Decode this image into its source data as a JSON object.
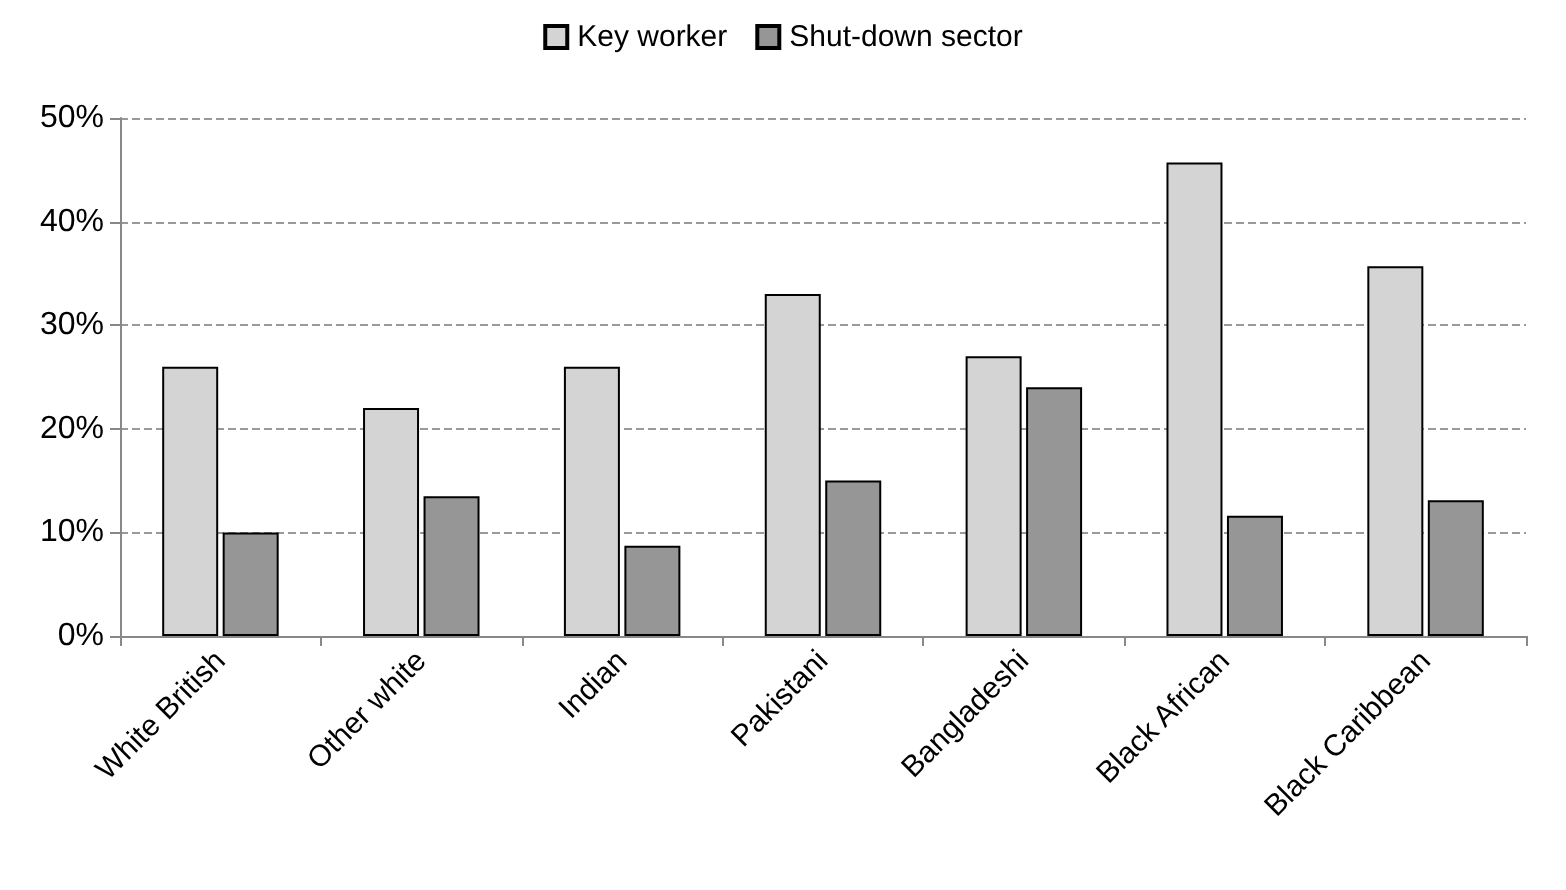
{
  "chart_data": {
    "type": "bar",
    "categories": [
      "White British",
      "Other white",
      "Indian",
      "Pakistani",
      "Bangladeshi",
      "Black African",
      "Black Caribbean"
    ],
    "series": [
      {
        "name": "Key worker",
        "color": "#d4d4d4",
        "values": [
          26,
          22,
          26,
          33,
          27,
          45.7,
          35.7
        ]
      },
      {
        "name": "Shut-down sector",
        "color": "#969696",
        "values": [
          10,
          13.5,
          8.7,
          15,
          24,
          11.6,
          13.1
        ]
      }
    ],
    "ylim": [
      0,
      50
    ],
    "yticks": [
      {
        "value": 0,
        "label": "0%"
      },
      {
        "value": 10,
        "label": "10%"
      },
      {
        "value": 20,
        "label": "20%"
      },
      {
        "value": 30,
        "label": "30%"
      },
      {
        "value": 40,
        "label": "40%"
      },
      {
        "value": 50,
        "label": "50%"
      }
    ],
    "grid": "y",
    "legend": "top"
  }
}
